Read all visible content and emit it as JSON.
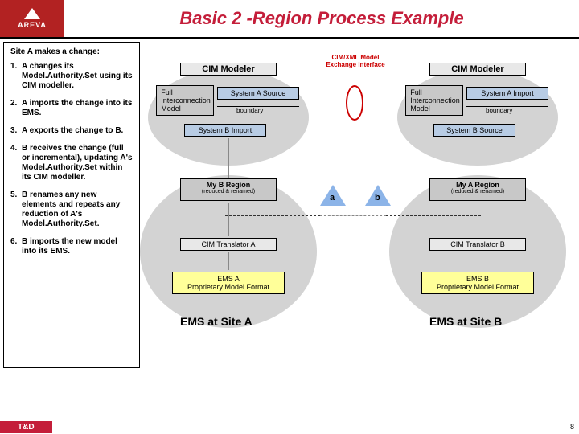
{
  "header": {
    "logo_text": "AREVA",
    "title": "Basic 2 -Region Process Example"
  },
  "steps": {
    "title": "Site A makes a change:",
    "items": [
      {
        "num": "1.",
        "text": "A changes its Model.Authority.Set using its CIM modeller."
      },
      {
        "num": "2.",
        "text": "A imports the change into its EMS."
      },
      {
        "num": "3.",
        "text": "A exports the change to B."
      },
      {
        "num": "4.",
        "text": "B receives the change (full or incremental), updating A's Model.Authority.Set within its CIM modeller."
      },
      {
        "num": "5.",
        "text": "B renames any new elements and repeats any reduction of A's Model.Authority.Set."
      },
      {
        "num": "6.",
        "text": "B imports the new model into its EMS."
      }
    ]
  },
  "diagram": {
    "interface_label": "CIM/XML\nModel Exchange\nInterface",
    "left": {
      "modeler": "CIM Modeler",
      "full_model": "Full\nInterconnection\nModel",
      "sys_a": "System A Source",
      "sys_b": "System B Import",
      "boundary": "boundary",
      "region": "My B Region",
      "region_sub": "(reduced & renamed)",
      "translator": "CIM Translator A",
      "ems_box": "EMS A\nProprietary Model Format",
      "site": "EMS at Site A",
      "marker": "a"
    },
    "right": {
      "modeler": "CIM Modeler",
      "full_model": "Full\nInterconnection\nModel",
      "sys_a": "System A Import",
      "sys_b": "System B Source",
      "boundary": "boundary",
      "region": "My A Region",
      "region_sub": "(reduced & renamed)",
      "translator": "CIM Translator B",
      "ems_box": "EMS B\nProprietary Model Format",
      "site": "EMS at Site B",
      "marker": "b"
    },
    "colors": {
      "ellipse": "#d3d3d3",
      "blue_box": "#b8cce4",
      "yellow_box": "#ffff99",
      "gray_box": "#e8e8e8",
      "dark_gray": "#c8c8c8",
      "red": "#c00000",
      "marker_fill": "#8cb4e8"
    }
  },
  "footer": {
    "brand": "T&D",
    "page": "8"
  }
}
